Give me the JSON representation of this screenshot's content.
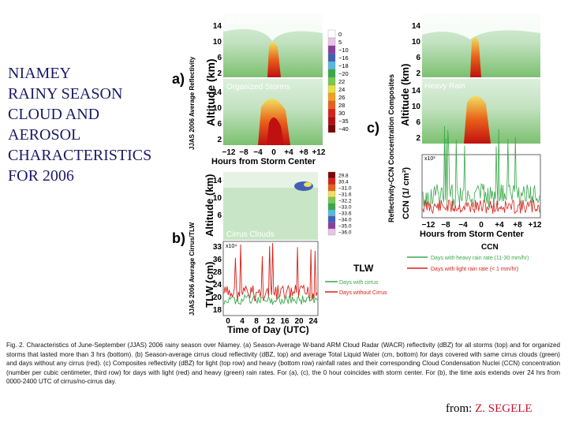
{
  "title_lines": [
    "NIAMEY",
    "RAINY SEASON",
    "CLOUD AND",
    "AEROSOL",
    "CHARACTERISTICS",
    "FOR 2006"
  ],
  "panel_a": {
    "letter": "a)",
    "side_label": "JJAS 2006 Average Reflectivity",
    "ylabel": "Altitude (km)",
    "xlabel": "Hours from Storm Center",
    "xticks": [
      "−12",
      "−8",
      "−4",
      "0",
      "+4",
      "+8",
      "+12"
    ],
    "yticks": [
      "14",
      "10",
      "6",
      "2"
    ],
    "sub_top": "All Storms",
    "sub_bottom": "Organized Storms",
    "colorbar": [
      "0",
      "5",
      "−10",
      "−16",
      "−18",
      "−20",
      "22",
      "24",
      "26",
      "28",
      "30",
      "−35",
      "−40"
    ],
    "colors": [
      "#ffffff",
      "#e8c4e8",
      "#8a3d9e",
      "#3f5fb8",
      "#58b8e0",
      "#38a848",
      "#7ac850",
      "#e8e040",
      "#f0a020",
      "#e86018",
      "#d82018",
      "#b01010",
      "#7a0808"
    ]
  },
  "panel_b": {
    "letter": "b)",
    "side_label": "JJAS 2006 Average Cirrus/TLW",
    "ylabel_top": "Altitude (km)",
    "ylabel_bottom": "TLW (cm)",
    "xlabel": "Time of Day (UTC)",
    "xticks": [
      "0",
      "4",
      "8",
      "12",
      "16",
      "20",
      "24"
    ],
    "yticks_top": [
      "14",
      "10",
      "6"
    ],
    "yticks_bottom": [
      "33",
      "36",
      "28",
      "24",
      "20",
      "18"
    ],
    "sub_label": "Cirrus Clouds",
    "exp_label": "x10⁴",
    "colorbar": [
      "29.8",
      "30.4",
      "−31.0",
      "−31.6",
      "−32.2",
      "−33.0",
      "−33.6",
      "−34.0",
      "−35.0",
      "−36.0"
    ],
    "legend_title": "TLW",
    "legend_with": "Days with cirrus",
    "legend_without": "Days without Cirrus"
  },
  "panel_c": {
    "letter": "c)",
    "side_label": "Reflectivity-CCN Concentration Composites",
    "ylabel_top": "Altitude (km)",
    "ylabel_bottom": "CCN (1/ cm³)",
    "xlabel": "Hours from Storm Center",
    "xticks": [
      "−12",
      "−8",
      "−4",
      "0",
      "+4",
      "+8",
      "+12"
    ],
    "yticks_top": [
      "14",
      "10",
      "6",
      "2"
    ],
    "sub_top": "Light Rain",
    "sub_bottom": "Heavy Rain",
    "exp_label": "x10³",
    "ccn_title": "CCN",
    "legend_heavy": "Days with heavy rain rate (11-30 mm/hr)",
    "legend_light": "Days with light rain rate (< 1 mm/hr)"
  },
  "caption": "Fig. 2. Characteristics of June-September (JJAS) 2006 rainy season over Niamey. (a) Season-Average W-band ARM Cloud Radar (WACR) reflectivity (dBZ) for all storms (top) and for organized storms that lasted more than 3 hrs (bottom). (b) Season-average cirrus cloud reflectivity (dBZ, top) and average Total Liquid Water (cm, bottom) for days covered with same cirrus clouds (green) and days without any cirrus (red). (c) Composites reflectivity (dBZ) for light (top row) and heavy (bottom row) rainfall rates and their corresponding Cloud Condensation Nuclei (CCN) concentration (number per cubic centimeter, third row) for days with light (red) and heavy (green) rain rates.  For (a), (c), the 0 hour coincides with storm center. For (b), the time axis extends over 24 hrs from 0000-2400 UTC of cirrus/no-cirrus day.",
  "credit_prefix": "from:",
  "credit_name": "Z. SEGELE"
}
